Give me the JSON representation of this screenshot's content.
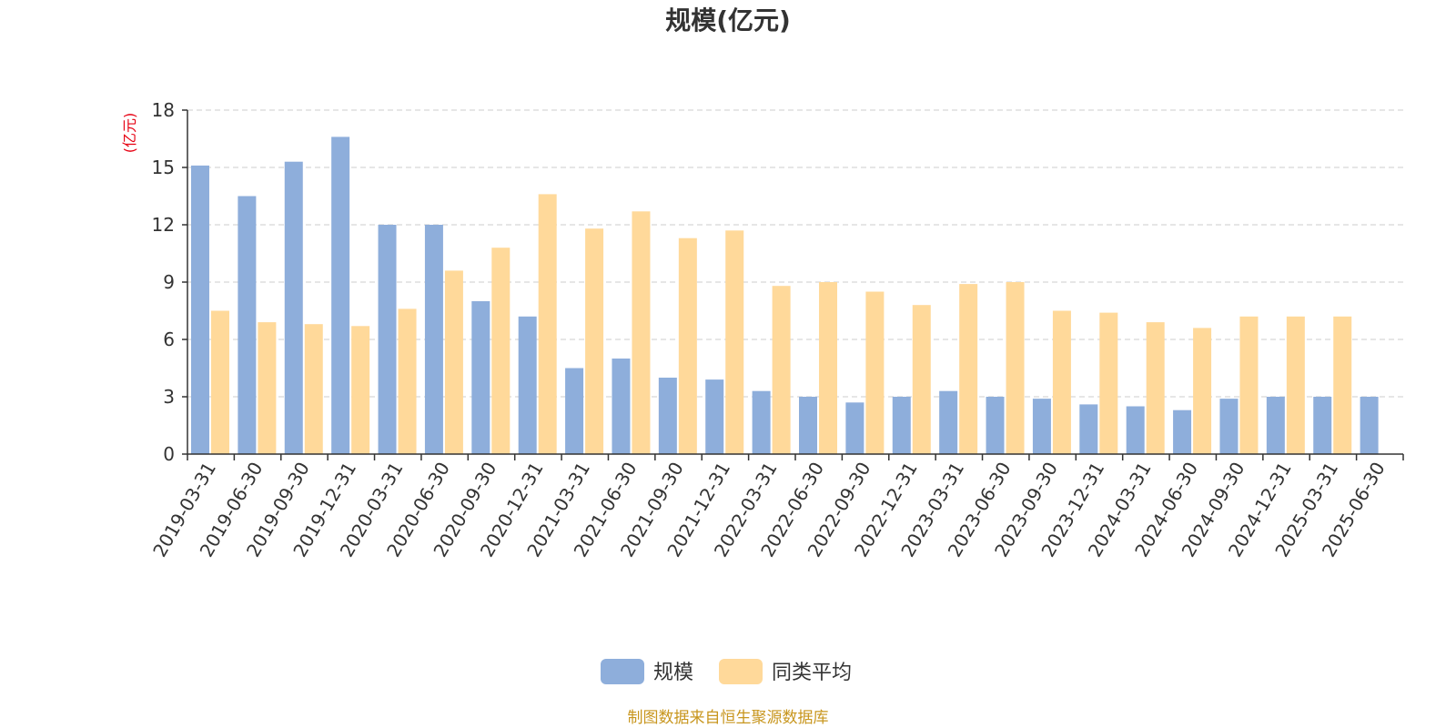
{
  "chart_data": {
    "type": "bar",
    "title": "规模(亿元)",
    "ylabel": "(亿元)",
    "xlabel": "",
    "ylim": [
      0,
      18
    ],
    "yticks": [
      0,
      3,
      6,
      9,
      12,
      15,
      18
    ],
    "grid": true,
    "legend_position": "bottom",
    "categories": [
      "2019-03-31",
      "2019-06-30",
      "2019-09-30",
      "2019-12-31",
      "2020-03-31",
      "2020-06-30",
      "2020-09-30",
      "2020-12-31",
      "2021-03-31",
      "2021-06-30",
      "2021-09-30",
      "2021-12-31",
      "2022-03-31",
      "2022-06-30",
      "2022-09-30",
      "2022-12-31",
      "2023-03-31",
      "2023-06-30",
      "2023-09-30",
      "2023-12-31",
      "2024-03-31",
      "2024-06-30",
      "2024-09-30",
      "2024-12-31",
      "2025-03-31",
      "2025-06-30"
    ],
    "series": [
      {
        "name": "规模",
        "color": "#8eaedb",
        "values": [
          15.1,
          13.5,
          15.3,
          16.6,
          12.0,
          12.0,
          8.0,
          7.2,
          4.5,
          5.0,
          4.0,
          3.9,
          3.3,
          3.0,
          2.7,
          3.0,
          3.3,
          3.0,
          2.9,
          2.6,
          2.5,
          2.3,
          2.9,
          3.0,
          3.0,
          3.0
        ]
      },
      {
        "name": "同类平均",
        "color": "#ffd99a",
        "values": [
          7.5,
          6.9,
          6.8,
          6.7,
          7.6,
          9.6,
          10.8,
          13.6,
          11.8,
          12.7,
          11.3,
          11.7,
          8.8,
          9.0,
          8.5,
          7.8,
          8.9,
          9.0,
          7.5,
          7.4,
          6.9,
          6.6,
          7.2,
          7.2,
          7.2,
          null
        ]
      }
    ]
  },
  "footer": {
    "source": "制图数据来自恒生聚源数据库",
    "source_color": "#c8961e"
  },
  "colors": {
    "axis": "#333333",
    "grid": "#cccccc",
    "ylabel": "#e60012"
  }
}
